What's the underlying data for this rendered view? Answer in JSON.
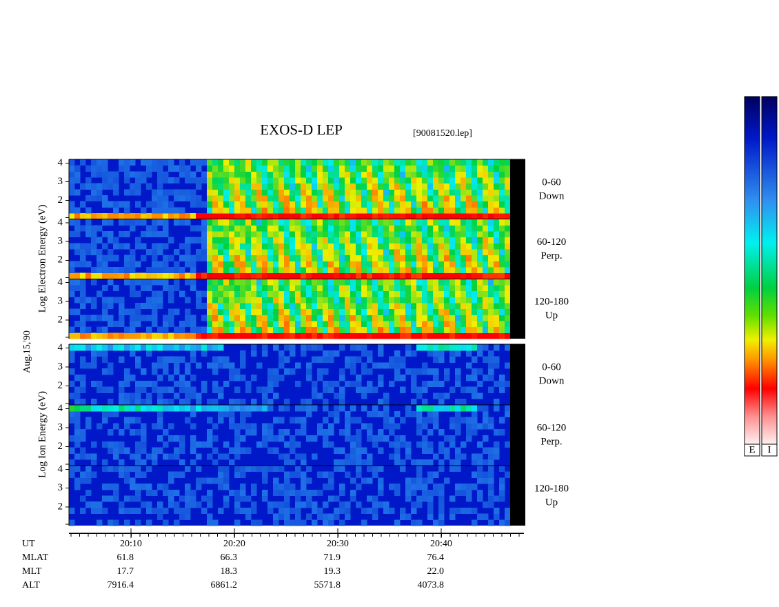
{
  "title": "EXOS-D LEP",
  "file": "[90081520.lep]",
  "date": "Aug.15,'90",
  "axis_titles": [
    "Log  Electron  Energy (eV)",
    "Log  Ion  Energy (eV)"
  ],
  "xlim": [
    "20:04",
    "20:48"
  ],
  "chart_data": [
    {
      "type": "heatmap",
      "labels": [
        "0-60",
        "Down"
      ],
      "ylim": [
        1,
        4.2
      ],
      "yticks": [
        2,
        3,
        4
      ]
    },
    {
      "type": "heatmap",
      "labels": [
        "60-120",
        "Perp."
      ],
      "ylim": [
        1,
        4.2
      ],
      "yticks": [
        2,
        3,
        4
      ]
    },
    {
      "type": "heatmap",
      "labels": [
        "120-180",
        "Up"
      ],
      "ylim": [
        1,
        4.2
      ],
      "yticks": [
        2,
        3,
        4
      ]
    },
    {
      "type": "heatmap",
      "labels": [
        "0-60",
        "Down"
      ],
      "ylim": [
        1,
        4.2
      ],
      "yticks": [
        2,
        3,
        4
      ]
    },
    {
      "type": "heatmap",
      "labels": [
        "60-120",
        "Perp."
      ],
      "ylim": [
        1,
        4.2
      ],
      "yticks": [
        2,
        3,
        4
      ]
    },
    {
      "type": "heatmap",
      "labels": [
        "120-180",
        "Up"
      ],
      "ylim": [
        1,
        4.2
      ],
      "yticks": [
        2,
        3,
        4
      ]
    }
  ],
  "footer": {
    "rows": [
      {
        "label": "UT",
        "values": [
          "20:10",
          "20:20",
          "20:30",
          "20:40"
        ]
      },
      {
        "label": "MLAT",
        "values": [
          "61.8",
          "66.3",
          "71.9",
          "76.4"
        ]
      },
      {
        "label": "MLT",
        "values": [
          "17.7",
          "18.3",
          "19.3",
          "22.0"
        ]
      },
      {
        "label": "ALT",
        "values": [
          "7916.4",
          "6861.2",
          "5571.8",
          "4073.8"
        ]
      }
    ]
  },
  "colorbars": [
    "E",
    "I"
  ]
}
